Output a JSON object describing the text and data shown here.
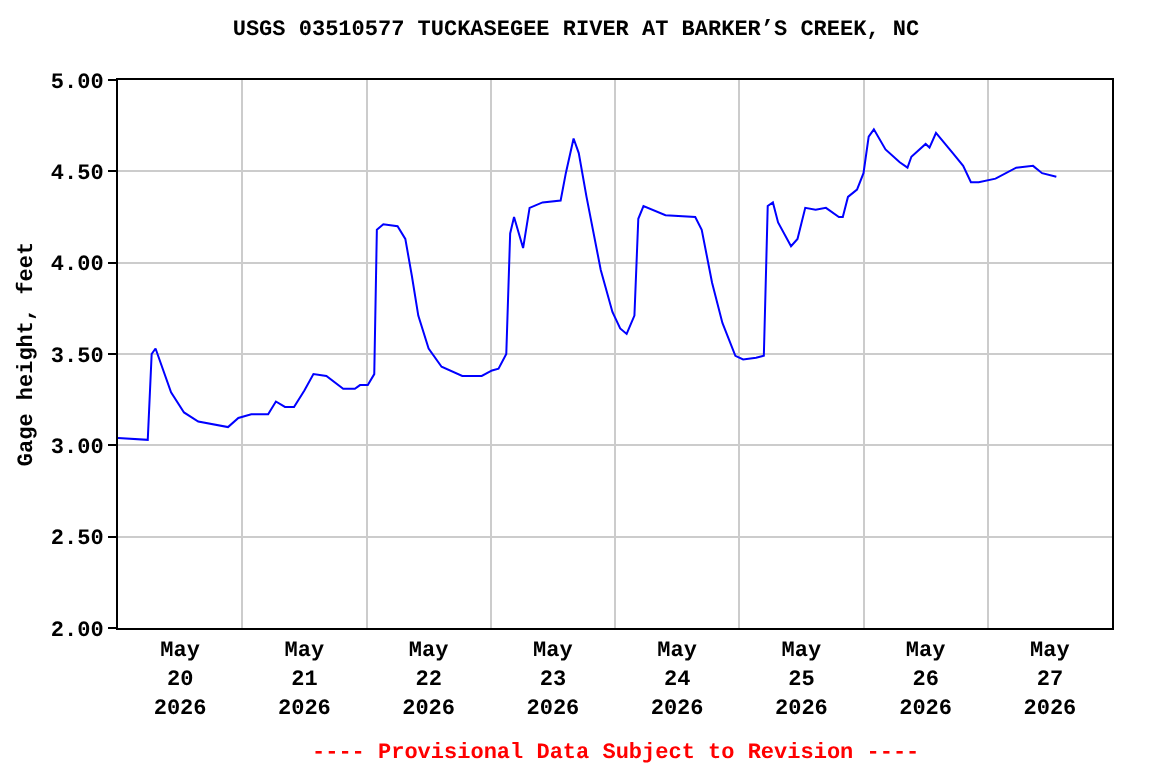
{
  "chart_data": {
    "type": "line",
    "title": "USGS 03510577 TUCKASEGEE RIVER AT BARKER’S CREEK, NC",
    "ylabel": "Gage height, feet",
    "annotations": [
      "---- Provisional Data Subject to Revision ----"
    ],
    "x": [
      "2026-05-20T00:00",
      "2026-05-20T05:45",
      "2026-05-20T06:30",
      "2026-05-20T07:15",
      "2026-05-20T10:15",
      "2026-05-20T12:45",
      "2026-05-20T15:30",
      "2026-05-20T21:15",
      "2026-05-20T23:15",
      "2026-05-21T01:45",
      "2026-05-21T05:00",
      "2026-05-21T06:30",
      "2026-05-21T08:15",
      "2026-05-21T10:00",
      "2026-05-21T12:00",
      "2026-05-21T13:45",
      "2026-05-21T16:15",
      "2026-05-21T19:30",
      "2026-05-21T21:45",
      "2026-05-21T22:45",
      "2026-05-22T00:15",
      "2026-05-22T01:30",
      "2026-05-22T02:00",
      "2026-05-22T03:15",
      "2026-05-22T06:00",
      "2026-05-22T07:30",
      "2026-05-22T08:45",
      "2026-05-22T10:00",
      "2026-05-22T12:00",
      "2026-05-22T14:30",
      "2026-05-22T18:30",
      "2026-05-22T22:15",
      "2026-05-23T00:15",
      "2026-05-23T01:30",
      "2026-05-23T03:00",
      "2026-05-23T03:45",
      "2026-05-23T04:30",
      "2026-05-23T06:15",
      "2026-05-23T07:30",
      "2026-05-23T10:00",
      "2026-05-23T13:30",
      "2026-05-23T14:30",
      "2026-05-23T16:00",
      "2026-05-23T17:00",
      "2026-05-23T18:30",
      "2026-05-23T21:15",
      "2026-05-23T23:30",
      "2026-05-24T01:00",
      "2026-05-24T02:15",
      "2026-05-24T03:45",
      "2026-05-24T04:30",
      "2026-05-24T05:30",
      "2026-05-24T09:45",
      "2026-05-24T15:30",
      "2026-05-24T16:45",
      "2026-05-24T18:45",
      "2026-05-24T20:45",
      "2026-05-24T23:15",
      "2026-05-25T00:45",
      "2026-05-25T03:15",
      "2026-05-25T04:45",
      "2026-05-25T05:30",
      "2026-05-25T06:30",
      "2026-05-25T07:30",
      "2026-05-25T10:00",
      "2026-05-25T11:15",
      "2026-05-25T12:45",
      "2026-05-25T14:45",
      "2026-05-25T16:45",
      "2026-05-25T19:15",
      "2026-05-25T20:00",
      "2026-05-25T21:00",
      "2026-05-25T22:45",
      "2026-05-26T00:00",
      "2026-05-26T01:00",
      "2026-05-26T02:00",
      "2026-05-26T04:15",
      "2026-05-26T07:00",
      "2026-05-26T08:30",
      "2026-05-26T09:15",
      "2026-05-26T12:00",
      "2026-05-26T12:45",
      "2026-05-26T14:00",
      "2026-05-26T17:15",
      "2026-05-26T19:15",
      "2026-05-26T20:45",
      "2026-05-26T22:15",
      "2026-05-27T01:30",
      "2026-05-27T05:30",
      "2026-05-27T08:45",
      "2026-05-27T10:30",
      "2026-05-27T13:15"
    ],
    "series": [
      {
        "color": "#0000ff",
        "values": [
          3.04,
          3.03,
          3.5,
          3.53,
          3.29,
          3.18,
          3.13,
          3.1,
          3.15,
          3.17,
          3.17,
          3.24,
          3.21,
          3.21,
          3.3,
          3.39,
          3.38,
          3.31,
          3.31,
          3.33,
          3.33,
          3.39,
          4.18,
          4.21,
          4.2,
          4.13,
          3.93,
          3.71,
          3.53,
          3.43,
          3.38,
          3.38,
          3.41,
          3.42,
          3.5,
          4.16,
          4.25,
          4.08,
          4.3,
          4.33,
          4.34,
          4.49,
          4.68,
          4.6,
          4.36,
          3.96,
          3.73,
          3.64,
          3.61,
          3.71,
          4.24,
          4.31,
          4.26,
          4.25,
          4.18,
          3.89,
          3.67,
          3.49,
          3.47,
          3.48,
          3.49,
          4.31,
          4.33,
          4.22,
          4.09,
          4.13,
          4.3,
          4.29,
          4.3,
          4.25,
          4.25,
          4.36,
          4.4,
          4.49,
          4.69,
          4.73,
          4.62,
          4.55,
          4.52,
          4.58,
          4.65,
          4.63,
          4.71,
          4.6,
          4.53,
          4.44,
          4.44,
          4.46,
          4.52,
          4.53,
          4.49,
          4.47
        ]
      }
    ],
    "xlim": [
      "2026-05-20T00:00",
      "2026-05-28T00:00"
    ],
    "xticks": [
      {
        "value": "2026-05-20T12:00",
        "label": "May\n20\n2026"
      },
      {
        "value": "2026-05-21T12:00",
        "label": "May\n21\n2026"
      },
      {
        "value": "2026-05-22T12:00",
        "label": "May\n22\n2026"
      },
      {
        "value": "2026-05-23T12:00",
        "label": "May\n23\n2026"
      },
      {
        "value": "2026-05-24T12:00",
        "label": "May\n24\n2026"
      },
      {
        "value": "2026-05-25T12:00",
        "label": "May\n25\n2026"
      },
      {
        "value": "2026-05-26T12:00",
        "label": "May\n26\n2026"
      },
      {
        "value": "2026-05-27T12:00",
        "label": "May\n27\n2026"
      },
      {
        "value": "2026-05-21T00:00",
        "label": null
      },
      {
        "value": "2026-05-22T00:00",
        "label": null
      },
      {
        "value": "2026-05-23T00:00",
        "label": null
      },
      {
        "value": "2026-05-24T00:00",
        "label": null
      },
      {
        "value": "2026-05-25T00:00",
        "label": null
      },
      {
        "value": "2026-05-26T00:00",
        "label": null
      },
      {
        "value": "2026-05-27T00:00",
        "label": null
      }
    ],
    "ylim": [
      2,
      5
    ],
    "yticks": [
      {
        "value": 2,
        "label": "2.00"
      },
      {
        "value": 2.5,
        "label": "2.50"
      },
      {
        "value": 3,
        "label": "3.00"
      },
      {
        "value": 3.5,
        "label": "3.50"
      },
      {
        "value": 4,
        "label": "4.00"
      },
      {
        "value": 4.5,
        "label": "4.50"
      },
      {
        "value": 5,
        "label": "5.00"
      }
    ],
    "grid": true,
    "marker": "none",
    "line_style": "solid"
  }
}
